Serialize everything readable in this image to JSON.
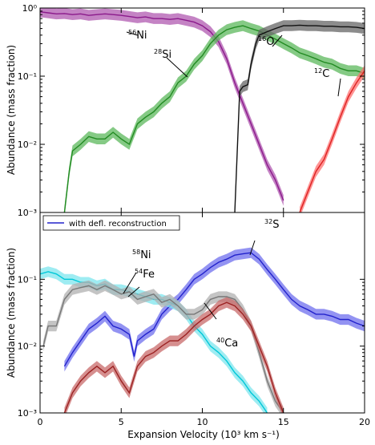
{
  "chart_data": {
    "type": "line",
    "shared_x": {
      "label": "Expansion Velocity (10³ km s⁻¹)",
      "lim": [
        0,
        20
      ],
      "ticks": [
        "0",
        "5",
        "10",
        "15",
        "20"
      ]
    },
    "panels": [
      {
        "ylabel": "Abundance (mass fraction)",
        "yscale": "log",
        "ylim": [
          0.001,
          1
        ],
        "yticks": [
          "10⁰",
          "10⁻¹",
          "10⁻²",
          "10⁻³"
        ],
        "annotations": [
          {
            "mass": "56",
            "element": "Ni"
          },
          {
            "mass": "28",
            "element": "Si"
          },
          {
            "mass": "16",
            "element": "O"
          },
          {
            "mass": "12",
            "element": "C"
          }
        ],
        "series": [
          {
            "name": "56Ni",
            "color": "#8b1a8b",
            "band": "#b05ab0",
            "x": [
              0,
              0.5,
              1,
              1.5,
              2,
              2.5,
              3,
              3.5,
              4,
              4.5,
              5,
              5.5,
              6,
              6.5,
              7,
              7.5,
              8,
              8.5,
              9,
              9.5,
              10,
              10.5,
              11,
              11.5,
              12,
              12.5,
              13,
              13.5,
              14,
              14.5,
              15
            ],
            "y": [
              0.88,
              0.85,
              0.82,
              0.83,
              0.8,
              0.82,
              0.78,
              0.8,
              0.82,
              0.8,
              0.78,
              0.75,
              0.72,
              0.74,
              0.7,
              0.7,
              0.68,
              0.7,
              0.66,
              0.62,
              0.55,
              0.45,
              0.32,
              0.18,
              0.08,
              0.04,
              0.02,
              0.01,
              0.005,
              0.003,
              0.0015
            ]
          },
          {
            "name": "28Si",
            "color": "#228b22",
            "band": "#5cb85c",
            "x": [
              1.5,
              1.8,
              2,
              2.5,
              3,
              3.5,
              4,
              4.5,
              5,
              5.5,
              6,
              6.5,
              7,
              7.5,
              8,
              8.5,
              9,
              9.5,
              10,
              10.5,
              11,
              11.5,
              12,
              12.5,
              13,
              13.5,
              14,
              14.5,
              15,
              15.5,
              16,
              16.5,
              17,
              17.5,
              18,
              18.5,
              19,
              19.5,
              20
            ],
            "y": [
              0.001,
              0.004,
              0.008,
              0.01,
              0.013,
              0.012,
              0.012,
              0.015,
              0.012,
              0.01,
              0.02,
              0.025,
              0.03,
              0.04,
              0.05,
              0.08,
              0.1,
              0.15,
              0.2,
              0.3,
              0.4,
              0.48,
              0.52,
              0.55,
              0.5,
              0.46,
              0.4,
              0.35,
              0.3,
              0.26,
              0.22,
              0.2,
              0.18,
              0.16,
              0.15,
              0.13,
              0.12,
              0.12,
              0.11
            ]
          },
          {
            "name": "16O",
            "color": "#111111",
            "band": "#666666",
            "x": [
              12,
              12.3,
              12.5,
              12.8,
              13,
              13.3,
              13.5,
              14,
              14.5,
              15,
              15.5,
              16,
              16.5,
              17,
              17.5,
              18,
              18.5,
              19,
              19.5,
              20
            ],
            "y": [
              0.001,
              0.06,
              0.07,
              0.075,
              0.15,
              0.3,
              0.4,
              0.45,
              0.5,
              0.55,
              0.55,
              0.56,
              0.55,
              0.55,
              0.54,
              0.54,
              0.53,
              0.53,
              0.52,
              0.5
            ]
          },
          {
            "name": "12C",
            "color": "#dd2222",
            "band": "#ff7070",
            "x": [
              16,
              16.5,
              17,
              17.5,
              18,
              18.5,
              19,
              19.5,
              20
            ],
            "y": [
              0.001,
              0.002,
              0.004,
              0.006,
              0.012,
              0.025,
              0.05,
              0.08,
              0.12
            ]
          }
        ]
      },
      {
        "ylabel": "Abundance (mass fraction)",
        "yscale": "log",
        "ylim": [
          0.001,
          1
        ],
        "yticks": [
          "10⁻¹",
          "10⁻²",
          "10⁻³"
        ],
        "legend": {
          "label": "with defl. reconstruction",
          "color": "#2222cc",
          "position": "upper-left"
        },
        "annotations": [
          {
            "mass": "32",
            "element": "S"
          },
          {
            "mass": "58",
            "element": "Ni"
          },
          {
            "mass": "54",
            "element": "Fe"
          },
          {
            "mass": "40",
            "element": "Ca"
          }
        ],
        "series": [
          {
            "name": "32S",
            "color": "#2222cc",
            "band": "#6f6fee",
            "x": [
              1.5,
              2,
              2.5,
              3,
              3.5,
              4,
              4.5,
              5,
              5.5,
              5.8,
              6,
              6.5,
              7,
              7.5,
              8,
              8.5,
              9,
              9.5,
              10,
              10.5,
              11,
              11.5,
              12,
              12.5,
              13,
              13.5,
              14,
              14.5,
              15,
              15.5,
              16,
              16.5,
              17,
              17.5,
              18,
              18.5,
              19,
              19.5,
              20
            ],
            "y": [
              0.005,
              0.008,
              0.012,
              0.018,
              0.022,
              0.028,
              0.02,
              0.018,
              0.015,
              0.007,
              0.012,
              0.015,
              0.018,
              0.03,
              0.04,
              0.05,
              0.07,
              0.1,
              0.12,
              0.15,
              0.18,
              0.2,
              0.23,
              0.24,
              0.25,
              0.2,
              0.14,
              0.1,
              0.07,
              0.05,
              0.04,
              0.035,
              0.03,
              0.03,
              0.028,
              0.025,
              0.025,
              0.022,
              0.02
            ]
          },
          {
            "name": "58Ni",
            "color": "#00c8d8",
            "band": "#7de6ee",
            "x": [
              0,
              0.5,
              1,
              1.5,
              2,
              2.5,
              3,
              3.5,
              4,
              4.5,
              5,
              5.5,
              6,
              6.5,
              7,
              7.5,
              8,
              8.5,
              9,
              9.5,
              10,
              10.5,
              11,
              11.5,
              12,
              12.5,
              13,
              13.5,
              14
            ],
            "y": [
              0.12,
              0.13,
              0.12,
              0.1,
              0.1,
              0.09,
              0.09,
              0.08,
              0.085,
              0.07,
              0.07,
              0.065,
              0.06,
              0.055,
              0.05,
              0.05,
              0.045,
              0.04,
              0.03,
              0.02,
              0.015,
              0.01,
              0.008,
              0.006,
              0.004,
              0.003,
              0.002,
              0.0015,
              0.001
            ]
          },
          {
            "name": "54Fe",
            "color": "#777777",
            "band": "#b0b0b0",
            "x": [
              0.2,
              0.5,
              1,
              1.5,
              2,
              2.5,
              3,
              3.5,
              4,
              4.5,
              5,
              5.5,
              6,
              6.5,
              7,
              7.5,
              8,
              8.5,
              9,
              9.5,
              10,
              10.5,
              11,
              11.5,
              12,
              12.5,
              13,
              13.5,
              14,
              14.5,
              15
            ],
            "y": [
              0.01,
              0.02,
              0.02,
              0.05,
              0.07,
              0.075,
              0.08,
              0.07,
              0.08,
              0.07,
              0.06,
              0.065,
              0.05,
              0.055,
              0.06,
              0.045,
              0.05,
              0.04,
              0.03,
              0.03,
              0.035,
              0.05,
              0.055,
              0.055,
              0.05,
              0.035,
              0.02,
              0.008,
              0.003,
              0.0015,
              0.001
            ]
          },
          {
            "name": "40Ca",
            "color": "#9b2222",
            "band": "#c86a6a",
            "x": [
              1.5,
              2,
              2.5,
              3,
              3.5,
              4,
              4.5,
              5,
              5.5,
              6,
              6.5,
              7,
              7.5,
              8,
              8.5,
              9,
              9.5,
              10,
              10.5,
              11,
              11.5,
              12,
              12.5,
              13,
              13.5,
              14,
              14.5,
              15
            ],
            "y": [
              0.001,
              0.002,
              0.003,
              0.004,
              0.005,
              0.004,
              0.005,
              0.003,
              0.002,
              0.005,
              0.007,
              0.008,
              0.01,
              0.012,
              0.012,
              0.015,
              0.02,
              0.025,
              0.03,
              0.04,
              0.045,
              0.04,
              0.03,
              0.02,
              0.01,
              0.005,
              0.002,
              0.001
            ]
          }
        ]
      }
    ]
  }
}
